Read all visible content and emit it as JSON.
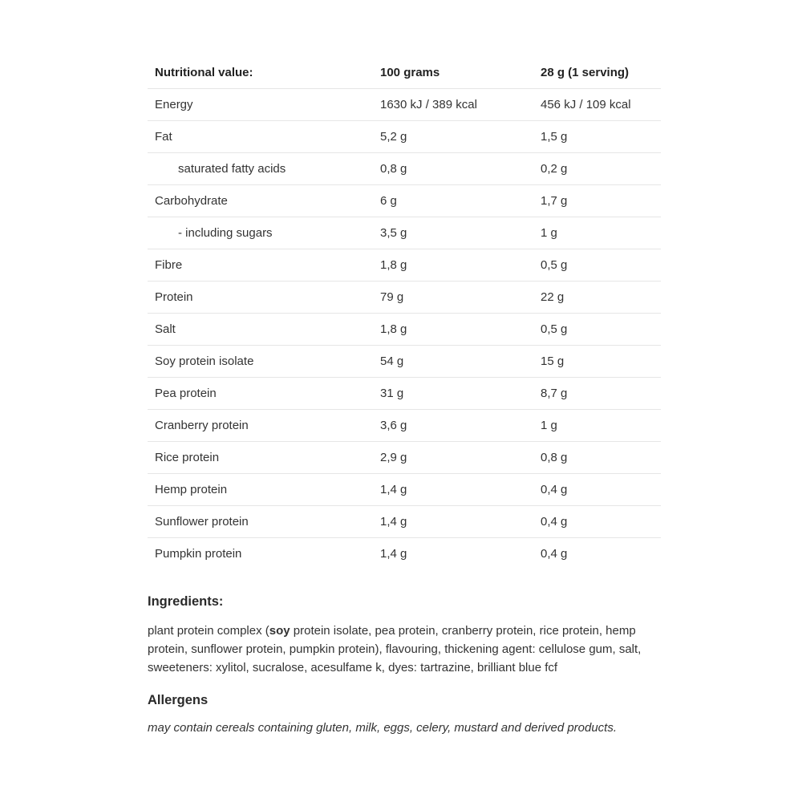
{
  "table": {
    "headers": [
      "Nutritional value:",
      "100 grams",
      "28 g (1 serving)"
    ],
    "rows": [
      {
        "name": "Energy",
        "per100": "1630 kJ / 389 kcal",
        "serving": "456 kJ / 109 kcal",
        "indent": false
      },
      {
        "name": "Fat",
        "per100": "5,2 g",
        "serving": "1,5 g",
        "indent": false
      },
      {
        "name": "saturated fatty acids",
        "per100": "0,8 g",
        "serving": "0,2 g",
        "indent": true
      },
      {
        "name": "Carbohydrate",
        "per100": "6 g",
        "serving": "1,7 g",
        "indent": false
      },
      {
        "name": "- including sugars",
        "per100": "3,5 g",
        "serving": "1 g",
        "indent": true
      },
      {
        "name": "Fibre",
        "per100": "1,8 g",
        "serving": "0,5 g",
        "indent": false
      },
      {
        "name": "Protein",
        "per100": "79 g",
        "serving": "22 g",
        "indent": false
      },
      {
        "name": "Salt",
        "per100": "1,8 g",
        "serving": "0,5 g",
        "indent": false
      },
      {
        "name": "Soy protein isolate",
        "per100": "54 g",
        "serving": "15 g",
        "indent": false
      },
      {
        "name": "Pea protein",
        "per100": "31 g",
        "serving": "8,7 g",
        "indent": false
      },
      {
        "name": "Cranberry protein",
        "per100": "3,6 g",
        "serving": "1 g",
        "indent": false
      },
      {
        "name": "Rice protein",
        "per100": "2,9 g",
        "serving": "0,8 g",
        "indent": false
      },
      {
        "name": "Hemp protein",
        "per100": "1,4 g",
        "serving": "0,4 g",
        "indent": false
      },
      {
        "name": "Sunflower protein",
        "per100": "1,4 g",
        "serving": "0,4 g",
        "indent": false
      },
      {
        "name": "Pumpkin protein",
        "per100": "1,4 g",
        "serving": "0,4 g",
        "indent": false
      }
    ]
  },
  "ingredients": {
    "heading": "Ingredients:",
    "before": "plant protein complex (",
    "bold": "soy",
    "after": " protein isolate, pea protein, cranberry protein, rice protein, hemp protein, sunflower protein, pumpkin protein), flavouring, thickening agent: cellulose gum, salt, sweeteners: xylitol, sucralose, acesulfame k, dyes: tartrazine, brilliant blue fcf"
  },
  "allergens": {
    "heading": "Allergens",
    "text": "may contain cereals containing gluten, milk, eggs, celery, mustard and derived products."
  }
}
